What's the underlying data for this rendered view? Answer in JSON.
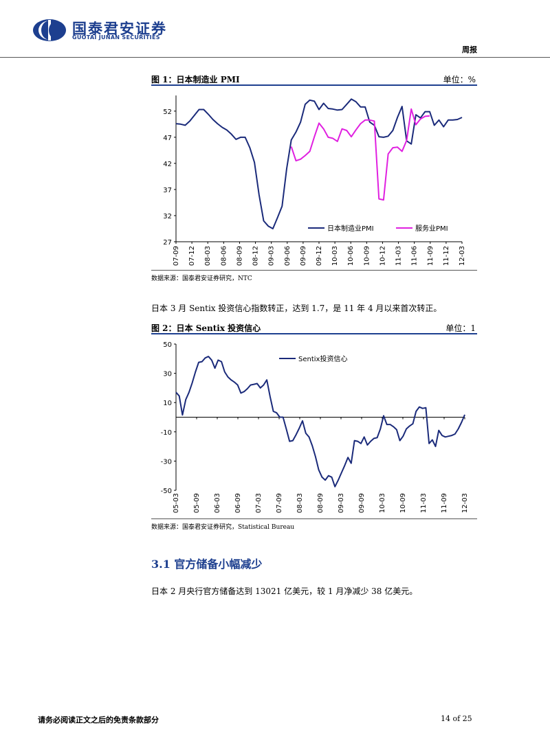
{
  "header": {
    "company_cn": "国泰君安证券",
    "company_en": "GUOTAI JUNAN SECURITIES",
    "report_type": "周报",
    "brand_color": "#1d3f8f"
  },
  "figure1": {
    "title": "图 1：日本制造业 PMI",
    "unit": "单位：%",
    "source": "数据来源：国泰君安证券研究，NTC"
  },
  "paragraph1": "日本 3 月 Sentix 投资信心指数转正，达到 1.7，是 11 年 4 月以来首次转正。",
  "figure2": {
    "title": "图 2：日本 Sentix 投资信心",
    "unit": "单位：1",
    "source": "数据来源：国泰君安证券研究，Statistical Bureau"
  },
  "section": {
    "number": "3.1",
    "title": "官方储备小幅减少",
    "full": "3.1  官方储备小幅减少"
  },
  "paragraph2": "日本 2 月央行官方储备达到 13021 亿美元，较 1 月净减少 38 亿美元。",
  "footer": {
    "disclaimer": "请务必阅读正文之后的免责条款部分",
    "page": "14 of 25"
  },
  "chart_data": [
    {
      "type": "line",
      "ylim": [
        27,
        55
      ],
      "yticks": [
        "52",
        "47",
        "42",
        "37",
        "32",
        "27"
      ],
      "ytick_values": [
        52,
        47,
        42,
        37,
        32,
        27
      ],
      "xticks": [
        "07-09",
        "07-12",
        "08-03",
        "08-06",
        "08-09",
        "08-12",
        "09-03",
        "09-06",
        "09-09",
        "09-12",
        "10-03",
        "10-06",
        "10-09",
        "10-12",
        "11-03",
        "11-06",
        "11-09",
        "11-12",
        "12-03"
      ],
      "legend_position": "bottom-right",
      "series": [
        {
          "name": "日本制造业PMI",
          "color": "#1a2a7a",
          "values": [
            49.6,
            49.5,
            49.3,
            50.1,
            51.2,
            52.3,
            52.3,
            51.4,
            50.4,
            49.6,
            48.9,
            48.4,
            47.6,
            46.6,
            47.0,
            47.0,
            45.0,
            42.2,
            36.0,
            31.0,
            30.0,
            29.5,
            31.6,
            33.8,
            41.0,
            46.5,
            48.0,
            49.9,
            53.3,
            54.1,
            53.9,
            52.3,
            53.5,
            52.5,
            52.4,
            52.2,
            52.3,
            53.3,
            54.3,
            53.8,
            52.8,
            52.8,
            49.9,
            49.3,
            47.1,
            47.0,
            47.2,
            48.3,
            50.8,
            52.9,
            46.3,
            45.7,
            51.3,
            50.7,
            51.9,
            51.9,
            49.3,
            50.3,
            49.0,
            50.3,
            50.3,
            50.4,
            50.8
          ]
        },
        {
          "name": "服务业PMI",
          "color": "#e020e0",
          "offset": 25,
          "values": [
            45.2,
            42.5,
            42.8,
            43.5,
            44.3,
            47.1,
            49.7,
            48.6,
            47.0,
            46.8,
            46.2,
            48.6,
            48.3,
            47.1,
            48.4,
            49.6,
            50.3,
            50.3,
            50.1,
            35.2,
            35.0,
            43.8,
            45.0,
            45.1,
            44.3,
            46.4,
            52.4,
            49.4,
            50.5,
            51.0,
            51.1
          ]
        }
      ]
    },
    {
      "type": "line",
      "ylim": [
        -50,
        50
      ],
      "yticks": [
        "50",
        "30",
        "10",
        "-10",
        "-30",
        "-50"
      ],
      "ytick_values": [
        50,
        30,
        10,
        -10,
        -30,
        -50
      ],
      "xticks": [
        "05-03",
        "05-09",
        "06-03",
        "06-09",
        "07-03",
        "07-09",
        "08-03",
        "08-09",
        "09-03",
        "09-09",
        "10-03",
        "10-09",
        "11-03",
        "11-09",
        "12-03"
      ],
      "legend_position": "top-center",
      "series": [
        {
          "name": "Sentix投资信心",
          "color": "#1a2a7a",
          "values": [
            17.0,
            14.5,
            1.5,
            12.0,
            17.0,
            23.5,
            31.0,
            37.5,
            38.0,
            40.5,
            41.5,
            39.0,
            33.5,
            39.0,
            38.0,
            31.0,
            27.5,
            25.5,
            24.0,
            22.0,
            16.5,
            17.5,
            19.5,
            22.0,
            22.5,
            23.0,
            20.0,
            22.0,
            25.5,
            14.0,
            4.0,
            3.0,
            0.0,
            0.0,
            -8.0,
            -16.5,
            -16.0,
            -12.0,
            -7.5,
            -2.5,
            -11.0,
            -13.5,
            -19.5,
            -27.0,
            -36.0,
            -41.0,
            -43.0,
            -40.0,
            -41.0,
            -47.5,
            -43.0,
            -38.0,
            -33.0,
            -27.5,
            -31.5,
            -16.0,
            -16.5,
            -18.0,
            -13.5,
            -19.0,
            -16.5,
            -14.5,
            -14.0,
            -8.0,
            1.0,
            -5.0,
            -5.0,
            -6.5,
            -8.5,
            -16.0,
            -13.0,
            -8.0,
            -6.0,
            -4.5,
            4.0,
            7.0,
            6.0,
            6.5,
            -18.0,
            -15.5,
            -20.0,
            -9.0,
            -12.5,
            -13.5,
            -13.0,
            -12.5,
            -11.5,
            -8.0,
            -3.5,
            1.7
          ]
        }
      ]
    }
  ]
}
